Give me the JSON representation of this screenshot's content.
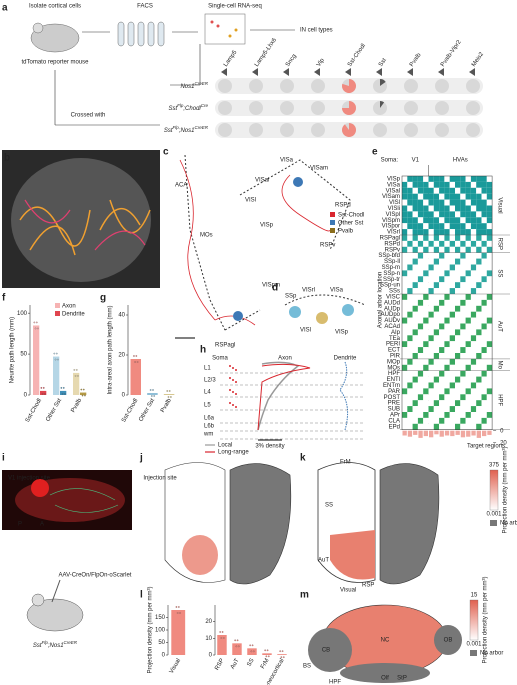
{
  "a": {
    "letter": "a",
    "isolate": "Isolate cortical cells",
    "reporter": "tdTomato reporter mouse",
    "facs": "FACS",
    "seq": "Single-cell RNA-seq",
    "types": "IN cell types",
    "crossed": "Crossed with",
    "columns": [
      "Lamp5",
      "Lamp5-Lhx6",
      "Sncg",
      "Vip",
      "Sst-Chodl",
      "Sst",
      "Pvalb",
      "Pvalb-Vipr2",
      "Meis2"
    ],
    "pie_colors": [
      "#555",
      "#555",
      "#555",
      "#555",
      "#f08a80",
      "#555",
      "#555",
      "#555",
      "#555"
    ],
    "rows": [
      {
        "parts": [
          {
            "t": "Nos1"
          },
          {
            "s": "CreER"
          }
        ],
        "pies": [
          0,
          0,
          0,
          0,
          80,
          15,
          0,
          0,
          0
        ]
      },
      {
        "parts": [
          {
            "t": "Sst"
          },
          {
            "s": "Flp"
          },
          {
            "t": ";Chodl"
          },
          {
            "s": "Cre"
          }
        ],
        "pies": [
          0,
          0,
          0,
          0,
          75,
          10,
          0,
          0,
          0
        ]
      },
      {
        "parts": [
          {
            "t": "Sst"
          },
          {
            "s": "Flp"
          },
          {
            "t": ";Nos1"
          },
          {
            "s": "CreER"
          }
        ],
        "pies": [
          0,
          0,
          0,
          0,
          90,
          0,
          0,
          0,
          0
        ]
      }
    ]
  },
  "b": {
    "letter": "b"
  },
  "c": {
    "letter": "c",
    "areas": [
      "ACA",
      "MOs",
      "VISa",
      "VISam",
      "VISal",
      "VISl",
      "VISp",
      "RSPd",
      "RSPv",
      "VISpm",
      "RSPagl"
    ],
    "legend": [
      {
        "name": "Sst-Chodl",
        "color": "#d9262e"
      },
      {
        "name": "Other Sst",
        "color": "#3d78b5"
      },
      {
        "name": "Pvalb",
        "color": "#8a6d1c"
      }
    ]
  },
  "d": {
    "letter": "d",
    "areas": [
      "SSp",
      "VISrl",
      "VISa",
      "VISl",
      "VISp"
    ]
  },
  "e": {
    "letter": "e",
    "soma": "Soma:",
    "v1": "V1",
    "hvas": "HVAs",
    "ylabel": "Axonal arbor location",
    "rows": [
      "VISp",
      "VISa",
      "VISal",
      "VISam",
      "VISl",
      "VISli",
      "VISpl",
      "VISpm",
      "VISpor",
      "VISrl",
      "RSPagl",
      "RSPd",
      "RSPv",
      "SSp-bfd",
      "SSp-ll",
      "SSp-m",
      "SSp-n",
      "SSp-tr",
      "SSp-un",
      "SSs",
      "VISC",
      "AUDd",
      "AUDp",
      "AUDpo",
      "AUDv",
      "ACAd",
      "AIp",
      "TEa",
      "PERI",
      "ECT",
      "PIR",
      "MOp",
      "MOs",
      "HPF",
      "ENTl",
      "ENTm",
      "PAR",
      "POST",
      "PRE",
      "SUB",
      "APr",
      "CLA",
      "EPd"
    ],
    "groups": [
      {
        "name": "Visual",
        "rows": 10
      },
      {
        "name": "RSP",
        "rows": 3
      },
      {
        "name": "SS",
        "rows": 7
      },
      {
        "name": "AuT",
        "rows": 11
      },
      {
        "name": "Mo",
        "rows": 2
      },
      {
        "name": "HPF",
        "rows": 10
      }
    ],
    "target_regions": {
      "label": "Target regions",
      "values": [
        8,
        10,
        7,
        12,
        9,
        11,
        6,
        10,
        8,
        9,
        7,
        11,
        10,
        8,
        12,
        9,
        7
      ],
      "ylim": [
        0,
        20
      ],
      "yticks": [
        0,
        20
      ],
      "color": "#f0a8a0"
    }
  },
  "f": {
    "letter": "f",
    "ylabel": "Neurite path length (mm)",
    "categories": [
      "Sst-Chodl",
      "Other Sst",
      "Pvalb"
    ],
    "ylim": [
      0,
      110
    ],
    "yticks": [
      0,
      50,
      100
    ],
    "series": [
      {
        "name": "Axon",
        "colors": [
          "#f6b3b3",
          "#b5d6e6",
          "#e6d9b0"
        ],
        "values": [
          85,
          47,
          27
        ]
      },
      {
        "name": "Dendrite",
        "colors": [
          "#e0454f",
          "#3f8fb8",
          "#b59a45"
        ],
        "values": [
          5,
          5,
          3
        ]
      }
    ]
  },
  "g": {
    "letter": "g",
    "ylabel": "Intra-areal axon path length (mm)",
    "categories": [
      "Sst-Chodl",
      "Other Sst",
      "Pvalb"
    ],
    "values": [
      18,
      1,
      0.5
    ],
    "colors": [
      "#f08a80",
      "#8fbfd8",
      "#d8c890"
    ],
    "ylim": [
      0,
      45
    ],
    "yticks": [
      0,
      20,
      40
    ]
  },
  "h": {
    "letter": "h",
    "soma": "Soma",
    "axon": "Axon",
    "dendrite": "Dendrite",
    "layers": [
      "L1",
      "L2/3",
      "L4",
      "L5",
      "L6a",
      "L6b",
      "wm"
    ],
    "scale": "3% density",
    "legend": [
      {
        "name": "Local",
        "color": "#999"
      },
      {
        "name": "Long-range",
        "color": "#d9262e"
      }
    ]
  },
  "i": {
    "letter": "i",
    "site": "V1 injection site",
    "p": "P",
    "a": "A",
    "virus": "AAV-CreOn/FlpOn-oScarlet",
    "parts": [
      {
        "t": "Sst"
      },
      {
        "s": "Flp"
      },
      {
        "t": ";Nos1"
      },
      {
        "s": "CreER"
      }
    ]
  },
  "j": {
    "letter": "j",
    "site": "Injection site"
  },
  "k": {
    "letter": "k",
    "areas": [
      "FrM",
      "SS",
      "AuT",
      "Visual",
      "RSP"
    ],
    "cmax": "375",
    "cmin": "0.001",
    "clabel": "Projection density (mm per mm³)",
    "noarbor": "No arbor"
  },
  "l": {
    "letter": "l",
    "ylabel": "Projection density (mm per mm³)",
    "left": {
      "categories": [
        "Visual"
      ],
      "values": [
        180
      ],
      "ylim": [
        0,
        200
      ],
      "yticks": [
        0,
        50,
        100,
        150
      ]
    },
    "right": {
      "categories": [
        "RSP",
        "AuT",
        "SS",
        "FrM",
        "Non-neocortical"
      ],
      "values": [
        12,
        7,
        4,
        1,
        0.5
      ],
      "ylim": [
        0,
        30
      ],
      "yticks": [
        0,
        10,
        20
      ]
    },
    "color": "#f08a80"
  },
  "m": {
    "letter": "m",
    "areas": [
      "NC",
      "CB",
      "OB",
      "BS",
      "Olf",
      "HPF",
      "StP"
    ],
    "cmax": "15",
    "cmin": "0.001",
    "clabel": "Projection density (mm per mm³)",
    "noarbor": "No arbor"
  }
}
